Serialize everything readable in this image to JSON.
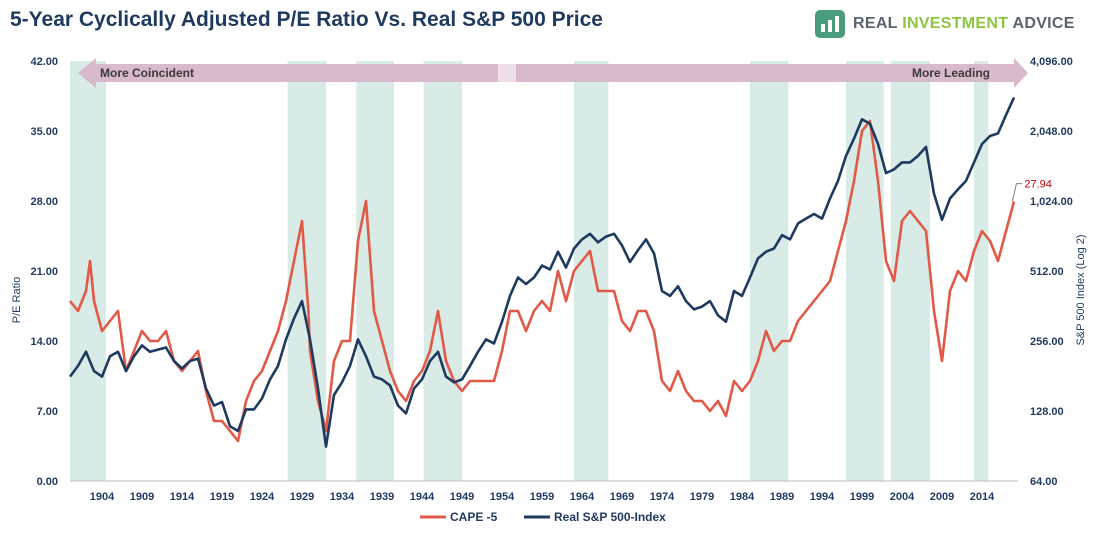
{
  "title": "5-Year Cyclically Adjusted P/E Ratio Vs. Real S&P 500 Price",
  "brand": {
    "part1": "REAL ",
    "part2": "INVESTMENT",
    "part3": " ADVICE"
  },
  "colors": {
    "cape": "#e05a47",
    "sp500": "#1f3a5f",
    "band": "#d8ebe6",
    "arrow": "#d9b9cc",
    "annotation": "#c00000"
  },
  "chart_data": {
    "type": "line",
    "title": "5-Year Cyclically Adjusted P/E Ratio Vs. Real S&P 500 Price",
    "xlabel": "",
    "ylabel": "P/E Ratio",
    "ylabel_right": "S&P 500 Index (Log 2)",
    "xlim": [
      1900,
      2018.5
    ],
    "ylim_left": [
      0,
      42
    ],
    "ylim_right_log2": [
      64,
      4096
    ],
    "x_ticks": [
      "1904",
      "1909",
      "1914",
      "1919",
      "1924",
      "1929",
      "1934",
      "1939",
      "1944",
      "1949",
      "1954",
      "1959",
      "1964",
      "1969",
      "1974",
      "1979",
      "1984",
      "1989",
      "1994",
      "1999",
      "2004",
      "2009",
      "2014"
    ],
    "y_ticks_left": [
      "0.00",
      "7.00",
      "14.00",
      "21.00",
      "28.00",
      "35.00",
      "42.00"
    ],
    "y_ticks_right": [
      "64.00",
      "128.00",
      "256.00",
      "512.00",
      "1,024.00",
      "2,048.00",
      "4,096.00"
    ],
    "arrow_labels": {
      "left": "More Coincident",
      "right": "More Leading"
    },
    "annotation": {
      "label": "27.94",
      "x": 2017.8,
      "y": 27.94
    },
    "shaded_periods": [
      [
        1900,
        1904.5
      ],
      [
        1927.2,
        1932
      ],
      [
        1935.8,
        1940.5
      ],
      [
        1944.2,
        1949
      ],
      [
        1963,
        1967.3
      ],
      [
        1985,
        1989.8
      ],
      [
        1997,
        2001.7
      ],
      [
        2002.6,
        2007.5
      ],
      [
        2013,
        2014.8
      ]
    ],
    "series": [
      {
        "name": "CAPE -5",
        "axis": "left",
        "points": [
          [
            1900,
            18
          ],
          [
            1901,
            17
          ],
          [
            1902,
            19
          ],
          [
            1902.5,
            22
          ],
          [
            1903,
            18
          ],
          [
            1904,
            15
          ],
          [
            1905,
            16
          ],
          [
            1906,
            17
          ],
          [
            1907,
            11
          ],
          [
            1908,
            13
          ],
          [
            1909,
            15
          ],
          [
            1910,
            14
          ],
          [
            1911,
            14
          ],
          [
            1912,
            15
          ],
          [
            1913,
            12
          ],
          [
            1914,
            11
          ],
          [
            1915,
            12
          ],
          [
            1916,
            13
          ],
          [
            1917,
            9
          ],
          [
            1918,
            6
          ],
          [
            1919,
            6
          ],
          [
            1920,
            5
          ],
          [
            1921,
            4
          ],
          [
            1922,
            8
          ],
          [
            1923,
            10
          ],
          [
            1924,
            11
          ],
          [
            1925,
            13
          ],
          [
            1926,
            15
          ],
          [
            1927,
            18
          ],
          [
            1928,
            22
          ],
          [
            1929,
            26
          ],
          [
            1929.8,
            17
          ],
          [
            1930,
            13
          ],
          [
            1931,
            8
          ],
          [
            1932,
            5
          ],
          [
            1933,
            12
          ],
          [
            1934,
            14
          ],
          [
            1935,
            14
          ],
          [
            1936,
            24
          ],
          [
            1937,
            28
          ],
          [
            1938,
            17
          ],
          [
            1939,
            14
          ],
          [
            1940,
            11
          ],
          [
            1941,
            9
          ],
          [
            1942,
            8
          ],
          [
            1943,
            10
          ],
          [
            1944,
            11
          ],
          [
            1945,
            13
          ],
          [
            1946,
            17
          ],
          [
            1947,
            12
          ],
          [
            1948,
            10
          ],
          [
            1949,
            9
          ],
          [
            1950,
            10
          ],
          [
            1951,
            10
          ],
          [
            1952,
            10
          ],
          [
            1953,
            10
          ],
          [
            1954,
            13
          ],
          [
            1955,
            17
          ],
          [
            1956,
            17
          ],
          [
            1957,
            15
          ],
          [
            1958,
            17
          ],
          [
            1959,
            18
          ],
          [
            1960,
            17
          ],
          [
            1961,
            21
          ],
          [
            1962,
            18
          ],
          [
            1963,
            21
          ],
          [
            1964,
            22
          ],
          [
            1965,
            23
          ],
          [
            1966,
            19
          ],
          [
            1967,
            19
          ],
          [
            1968,
            19
          ],
          [
            1969,
            16
          ],
          [
            1970,
            15
          ],
          [
            1971,
            17
          ],
          [
            1972,
            17
          ],
          [
            1973,
            15
          ],
          [
            1974,
            10
          ],
          [
            1975,
            9
          ],
          [
            1976,
            11
          ],
          [
            1977,
            9
          ],
          [
            1978,
            8
          ],
          [
            1979,
            8
          ],
          [
            1980,
            7
          ],
          [
            1981,
            8
          ],
          [
            1982,
            6.5
          ],
          [
            1983,
            10
          ],
          [
            1984,
            9
          ],
          [
            1985,
            10
          ],
          [
            1986,
            12
          ],
          [
            1987,
            15
          ],
          [
            1988,
            13
          ],
          [
            1989,
            14
          ],
          [
            1990,
            14
          ],
          [
            1991,
            16
          ],
          [
            1992,
            17
          ],
          [
            1993,
            18
          ],
          [
            1994,
            19
          ],
          [
            1995,
            20
          ],
          [
            1996,
            23
          ],
          [
            1997,
            26
          ],
          [
            1998,
            30
          ],
          [
            1999,
            35
          ],
          [
            2000,
            36
          ],
          [
            2001,
            30
          ],
          [
            2002,
            22
          ],
          [
            2003,
            20
          ],
          [
            2004,
            26
          ],
          [
            2005,
            27
          ],
          [
            2006,
            26
          ],
          [
            2007,
            25
          ],
          [
            2008,
            17
          ],
          [
            2009,
            12
          ],
          [
            2010,
            19
          ],
          [
            2011,
            21
          ],
          [
            2012,
            20
          ],
          [
            2013,
            23
          ],
          [
            2014,
            25
          ],
          [
            2015,
            24
          ],
          [
            2016,
            22
          ],
          [
            2017,
            25
          ],
          [
            2018,
            27.94
          ]
        ]
      },
      {
        "name": "Real S&P 500-Index",
        "axis": "right",
        "points": [
          [
            1900,
            180
          ],
          [
            1901,
            200
          ],
          [
            1902,
            230
          ],
          [
            1903,
            190
          ],
          [
            1904,
            180
          ],
          [
            1905,
            220
          ],
          [
            1906,
            230
          ],
          [
            1907,
            190
          ],
          [
            1908,
            220
          ],
          [
            1909,
            245
          ],
          [
            1910,
            230
          ],
          [
            1911,
            235
          ],
          [
            1912,
            240
          ],
          [
            1913,
            210
          ],
          [
            1914,
            195
          ],
          [
            1915,
            210
          ],
          [
            1916,
            215
          ],
          [
            1917,
            160
          ],
          [
            1918,
            135
          ],
          [
            1919,
            140
          ],
          [
            1920,
            110
          ],
          [
            1921,
            105
          ],
          [
            1922,
            130
          ],
          [
            1923,
            130
          ],
          [
            1924,
            145
          ],
          [
            1925,
            175
          ],
          [
            1926,
            200
          ],
          [
            1927,
            260
          ],
          [
            1928,
            320
          ],
          [
            1929,
            380
          ],
          [
            1930,
            260
          ],
          [
            1931,
            160
          ],
          [
            1932,
            90
          ],
          [
            1933,
            150
          ],
          [
            1934,
            170
          ],
          [
            1935,
            200
          ],
          [
            1936,
            260
          ],
          [
            1937,
            220
          ],
          [
            1938,
            180
          ],
          [
            1939,
            175
          ],
          [
            1940,
            165
          ],
          [
            1941,
            135
          ],
          [
            1942,
            125
          ],
          [
            1943,
            160
          ],
          [
            1944,
            175
          ],
          [
            1945,
            210
          ],
          [
            1946,
            230
          ],
          [
            1947,
            180
          ],
          [
            1948,
            170
          ],
          [
            1949,
            175
          ],
          [
            1950,
            200
          ],
          [
            1951,
            230
          ],
          [
            1952,
            260
          ],
          [
            1953,
            250
          ],
          [
            1954,
            310
          ],
          [
            1955,
            400
          ],
          [
            1956,
            480
          ],
          [
            1957,
            450
          ],
          [
            1958,
            480
          ],
          [
            1959,
            540
          ],
          [
            1960,
            520
          ],
          [
            1961,
            620
          ],
          [
            1962,
            530
          ],
          [
            1963,
            640
          ],
          [
            1964,
            700
          ],
          [
            1965,
            740
          ],
          [
            1966,
            680
          ],
          [
            1967,
            720
          ],
          [
            1968,
            740
          ],
          [
            1969,
            660
          ],
          [
            1970,
            560
          ],
          [
            1971,
            630
          ],
          [
            1972,
            700
          ],
          [
            1973,
            610
          ],
          [
            1974,
            420
          ],
          [
            1975,
            400
          ],
          [
            1976,
            440
          ],
          [
            1977,
            380
          ],
          [
            1978,
            350
          ],
          [
            1979,
            360
          ],
          [
            1980,
            380
          ],
          [
            1981,
            330
          ],
          [
            1982,
            310
          ],
          [
            1983,
            420
          ],
          [
            1984,
            400
          ],
          [
            1985,
            480
          ],
          [
            1986,
            580
          ],
          [
            1987,
            620
          ],
          [
            1988,
            640
          ],
          [
            1989,
            730
          ],
          [
            1990,
            700
          ],
          [
            1991,
            820
          ],
          [
            1992,
            860
          ],
          [
            1993,
            900
          ],
          [
            1994,
            860
          ],
          [
            1995,
            1050
          ],
          [
            1996,
            1250
          ],
          [
            1997,
            1600
          ],
          [
            1998,
            1900
          ],
          [
            1999,
            2300
          ],
          [
            2000,
            2200
          ],
          [
            2001,
            1800
          ],
          [
            2002,
            1350
          ],
          [
            2003,
            1400
          ],
          [
            2004,
            1500
          ],
          [
            2005,
            1500
          ],
          [
            2006,
            1600
          ],
          [
            2007,
            1750
          ],
          [
            2008,
            1100
          ],
          [
            2009,
            850
          ],
          [
            2010,
            1050
          ],
          [
            2011,
            1150
          ],
          [
            2012,
            1250
          ],
          [
            2013,
            1500
          ],
          [
            2014,
            1800
          ],
          [
            2015,
            1950
          ],
          [
            2016,
            2000
          ],
          [
            2017,
            2400
          ],
          [
            2018,
            2850
          ]
        ]
      }
    ],
    "legend": {
      "placement": "bottom-center",
      "items": [
        "CAPE -5",
        "Real S&P 500-Index"
      ]
    }
  }
}
